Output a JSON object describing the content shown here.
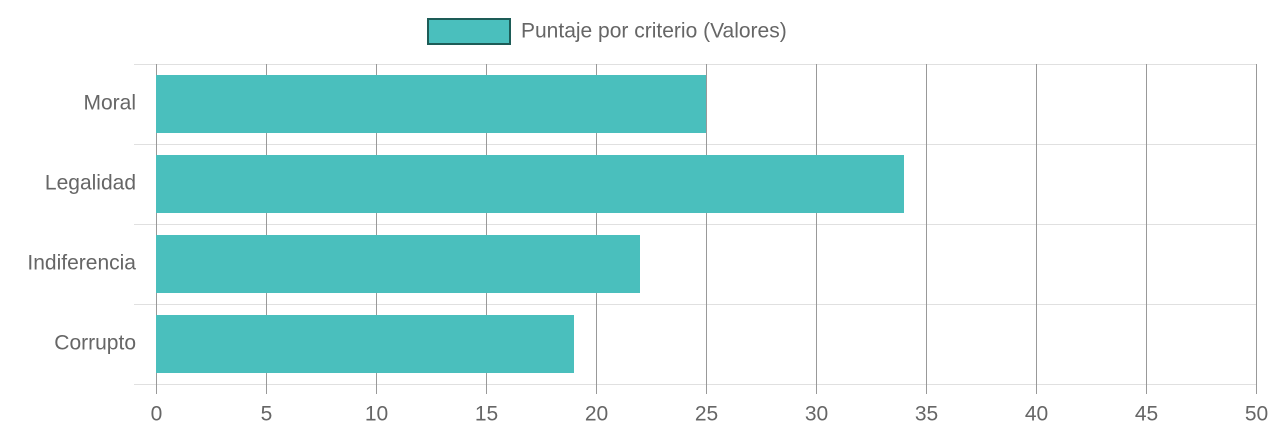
{
  "chart_data": {
    "type": "hbar",
    "categories": [
      "Moral",
      "Legalidad",
      "Indiferencia",
      "Corrupto"
    ],
    "series": [
      {
        "name": "Puntaje por criterio (Valores)",
        "color": "#4abfbd",
        "values": [
          25,
          34,
          22,
          19
        ]
      }
    ],
    "xlim": [
      0,
      50
    ],
    "xticks": [
      0,
      5,
      10,
      15,
      20,
      25,
      30,
      35,
      40,
      45,
      50
    ],
    "grid": true,
    "legend": "top"
  }
}
